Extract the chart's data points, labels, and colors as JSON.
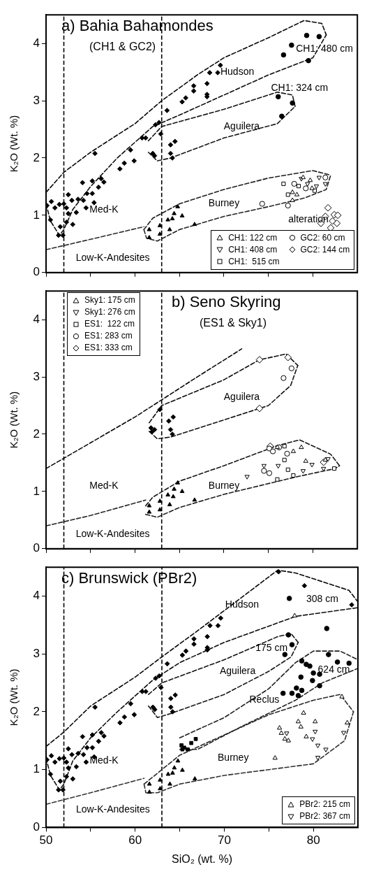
{
  "chart_data": [
    {
      "type": "scatter",
      "title": "a) Bahia Bahamondes",
      "subtitle": "(CH1 & GC2)",
      "ylabel": "K₂O (Wt. %)",
      "xlim": [
        50,
        85
      ],
      "ylim": [
        0,
        4.5
      ],
      "xticks": [
        50,
        {
          "value": 55,
          "label": null
        },
        60,
        {
          "value": 65,
          "label": null
        },
        70,
        {
          "value": 75,
          "label": null
        },
        80
      ],
      "yticks": [
        0,
        1,
        2,
        3,
        4
      ],
      "tick_labels": "y",
      "legend": "bottom right",
      "annotations": [
        "Hudson",
        "Aguilera",
        "Med-K",
        "Burney",
        "Low-K-Andesites",
        "CH1: 480 cm",
        "CH1: 324 cm",
        "alteration"
      ],
      "ref_lines": [
        {
          "axis": "x",
          "value": 52,
          "color": "#000000",
          "line_style": "dashed"
        },
        {
          "axis": "x",
          "value": 63,
          "color": "#000000",
          "line_style": "dashed"
        }
      ],
      "series": [
        {
          "type": "line",
          "color": "#060606",
          "line_style": "dashed",
          "x": [
            50,
            52,
            55,
            60,
            63,
            67,
            70,
            75,
            79,
            81,
            81.5
          ],
          "values": [
            1.4,
            1.75,
            2.1,
            2.6,
            3.0,
            3.45,
            3.75,
            4.1,
            4.4,
            4.35,
            4.15
          ]
        },
        {
          "type": "line",
          "color": "#0c0c0c",
          "line_style": "dashed",
          "x": [
            50,
            50.5,
            51.5,
            52,
            53,
            55,
            58,
            62,
            65,
            70,
            75,
            80,
            81.5
          ],
          "values": [
            1.2,
            0.9,
            0.65,
            0.75,
            1.1,
            1.5,
            2.0,
            2.55,
            2.75,
            3.1,
            3.45,
            3.75,
            4.15
          ]
        },
        {
          "type": "line",
          "color": "#121212",
          "line_style": "dashed",
          "x": [
            61.5,
            63,
            70,
            76,
            77.7,
            78
          ],
          "values": [
            2.3,
            2.55,
            2.85,
            3.15,
            3.1,
            2.9
          ]
        },
        {
          "type": "line",
          "color": "#181818",
          "line_style": "dashed",
          "x": [
            61.5,
            62.5,
            64,
            70,
            76,
            78
          ],
          "values": [
            2.1,
            1.95,
            2.0,
            2.35,
            2.6,
            2.9
          ]
        },
        {
          "type": "line",
          "color": "#1e1e1e",
          "line_style": "dashed",
          "x": [
            61,
            62,
            65,
            70,
            75,
            80,
            82
          ],
          "values": [
            0.75,
            0.95,
            1.2,
            1.45,
            1.65,
            1.78,
            1.7
          ]
        },
        {
          "type": "line",
          "color": "#242424",
          "line_style": "dashed",
          "x": [
            61,
            61.3,
            62.5,
            65,
            70,
            75,
            79,
            81.5,
            82
          ],
          "values": [
            0.75,
            0.6,
            0.55,
            0.75,
            0.98,
            1.15,
            1.3,
            1.45,
            1.7
          ]
        },
        {
          "type": "line",
          "color": "#2a2a2a",
          "line_style": "dashed",
          "x": [
            50,
            55,
            61
          ],
          "values": [
            0.4,
            0.58,
            0.8
          ]
        },
        {
          "color": "#000000",
          "marker": "diamond",
          "x": [
            50.1,
            50.6,
            50.5,
            51.0,
            51.5,
            51.6,
            52.0,
            52.3,
            52.5,
            52.3,
            52.5,
            52.9,
            53.4,
            53.0,
            53.6,
            54.1,
            54.2,
            54.5,
            54.6,
            55.2,
            55.2,
            55.4,
            55.5,
            55.9,
            56.2,
            56.5,
            51.4,
            51.9,
            58.3,
            58.8,
            59.5,
            59.9,
            60.8,
            61.2,
            62.0,
            62.2,
            62.3,
            62.7,
            62.9,
            63.6,
            64.0,
            64.2,
            64.5,
            64.0,
            65.3,
            65.7,
            66.6,
            66.6,
            68.1,
            68.1,
            68.1,
            68.4,
            69.3,
            69.6
          ],
          "values": [
            1.17,
            1.24,
            0.92,
            1.13,
            1.19,
            0.8,
            1.2,
            1.13,
            1.36,
            0.88,
            1.03,
            1.26,
            1.05,
            0.84,
            1.28,
            1.57,
            1.26,
            1.13,
            1.38,
            1.6,
            1.38,
            1.22,
            2.08,
            1.49,
            1.64,
            1.58,
            0.65,
            0.65,
            1.81,
            1.91,
            2.14,
            1.95,
            2.35,
            2.35,
            2.08,
            2.04,
            2.58,
            2.62,
            2.42,
            2.83,
            2.08,
            2.0,
            2.29,
            2.23,
            2.98,
            3.05,
            3.26,
            3.17,
            3.3,
            3.11,
            3.07,
            3.49,
            3.49,
            3.62
          ]
        },
        {
          "color": "#000000",
          "marker": "triangle",
          "x": [
            61.6,
            61.6,
            62.8,
            62.8,
            63.9,
            63.7,
            64.2,
            64.4,
            64.8,
            65.3,
            66.7
          ],
          "values": [
            0.61,
            0.75,
            0.67,
            0.82,
            0.75,
            0.92,
            0.94,
            1.03,
            1.15,
            0.99,
            0.84
          ]
        },
        {
          "color": "#000000",
          "marker": "circle",
          "x": [
            79.3,
            80.7,
            77.6,
            79.5,
            76.7,
            76.1,
            77.7,
            76.5
          ],
          "values": [
            4.14,
            4.12,
            3.97,
            3.7,
            3.8,
            3.07,
            2.96,
            2.73
          ]
        },
        {
          "name": "CH1: 122 cm",
          "color": "#000000",
          "marker": "triangle",
          "x": [
            77.7,
            78.2,
            78.9,
            79.7,
            77.7,
            79.9
          ],
          "values": [
            1.4,
            1.36,
            1.66,
            1.61,
            1.26,
            1.47
          ]
        },
        {
          "name": "CH1: 408 cm",
          "color": "#000000",
          "marker": "triangle-down",
          "x": [
            78.7,
            80.7,
            81.4,
            79.4,
            80.4
          ],
          "values": [
            1.64,
            1.66,
            1.55,
            1.55,
            1.51
          ]
        },
        {
          "name": "CH1:  515 cm",
          "color": "#000000",
          "marker": "square",
          "x": [
            76.7,
            77.2,
            78.4,
            80.2
          ],
          "values": [
            1.55,
            1.36,
            1.51,
            1.43
          ]
        },
        {
          "name": "GC2: 60 cm",
          "color": "#000000",
          "marker": "circle",
          "x": [
            77.2,
            79.2,
            74.3,
            77.9,
            81.4
          ],
          "values": [
            1.17,
            1.47,
            1.2,
            1.55,
            1.66
          ]
        },
        {
          "name": "GC2: 144 cm",
          "color": "#000000",
          "marker": "diamond",
          "x": [
            81.7,
            82.4,
            81.4,
            82.2,
            82.7,
            82.0,
            80.9,
            82.8
          ],
          "values": [
            1.13,
            1.01,
            0.98,
            0.9,
            0.86,
            0.78,
            0.86,
            1.0
          ]
        }
      ]
    },
    {
      "type": "scatter",
      "title": "b) Seno Skyring",
      "subtitle": "(ES1 & Sky1)",
      "ylabel": "K₂O (Wt. %)",
      "xlim": [
        50,
        85
      ],
      "ylim": [
        0,
        4.5
      ],
      "xticks": [
        50,
        {
          "value": 55,
          "label": null
        },
        60,
        {
          "value": 65,
          "label": null
        },
        70,
        {
          "value": 75,
          "label": null
        },
        80
      ],
      "yticks": [
        0,
        1,
        2,
        3,
        4
      ],
      "tick_labels": "y",
      "legend": "top left",
      "annotations": [
        "Aguilera",
        "Med-K",
        "Burney",
        "Low-K-Andesites"
      ],
      "ref_lines": [
        {
          "axis": "x",
          "value": 52,
          "color": "#000000",
          "line_style": "dashed"
        },
        {
          "axis": "x",
          "value": 63,
          "color": "#000000",
          "line_style": "dashed"
        }
      ],
      "series": [
        {
          "type": "line",
          "color": "#060606",
          "line_style": "dashed",
          "x": [
            50,
            55,
            60,
            63,
            67,
            72
          ],
          "values": [
            1.4,
            1.85,
            2.3,
            2.6,
            3.0,
            3.49
          ]
        },
        {
          "type": "line",
          "color": "#0c0c0c",
          "line_style": "dashed",
          "x": [
            61.6,
            63,
            70,
            74,
            77,
            78.3
          ],
          "values": [
            2.2,
            2.5,
            2.95,
            3.3,
            3.4,
            3.2
          ]
        },
        {
          "type": "line",
          "color": "#121212",
          "line_style": "dashed",
          "x": [
            61.6,
            62.5,
            64,
            70,
            75,
            77.5,
            78.3
          ],
          "values": [
            2.05,
            1.92,
            1.95,
            2.25,
            2.5,
            2.85,
            3.2
          ]
        },
        {
          "type": "line",
          "color": "#181818",
          "line_style": "dashed",
          "x": [
            61.2,
            62,
            65,
            70,
            76,
            78.5,
            82,
            83
          ],
          "values": [
            0.75,
            0.9,
            1.18,
            1.45,
            1.8,
            1.9,
            1.65,
            1.45
          ]
        },
        {
          "type": "line",
          "color": "#1e1e1e",
          "line_style": "dashed",
          "x": [
            61.2,
            62.5,
            65,
            70,
            78,
            82.5,
            83
          ],
          "values": [
            0.6,
            0.55,
            0.72,
            0.95,
            1.25,
            1.4,
            1.45
          ]
        },
        {
          "type": "line",
          "color": "#242424",
          "line_style": "dashed",
          "x": [
            50,
            55,
            61.2
          ],
          "values": [
            0.4,
            0.58,
            0.85
          ]
        },
        {
          "color": "#000000",
          "marker": "diamond",
          "x": [
            61.8,
            61.9,
            62.2,
            62.8,
            63.8,
            64.3,
            64.0,
            64.2
          ],
          "values": [
            2.11,
            2.04,
            2.08,
            2.43,
            2.23,
            2.3,
            2.08,
            2.0
          ]
        },
        {
          "color": "#000000",
          "marker": "triangle",
          "x": [
            61.6,
            61.6,
            62.8,
            62.8,
            63.9,
            63.7,
            64.3,
            64.4,
            64.8,
            65.3,
            66.7
          ],
          "values": [
            0.64,
            0.75,
            0.68,
            0.83,
            0.77,
            0.94,
            0.91,
            1.04,
            1.15,
            1.0,
            0.85
          ]
        },
        {
          "name": "Sky1: 175 cm",
          "color": "#000000",
          "marker": "triangle",
          "x": [
            77.8,
            78.7,
            79.2,
            81.4,
            76.0
          ],
          "values": [
            1.7,
            1.77,
            1.53,
            1.55,
            1.77
          ]
        },
        {
          "name": "Sky1: 276 cm",
          "color": "#000000",
          "marker": "triangle-down",
          "x": [
            72.6,
            74.5,
            76.1,
            78.9,
            79.9,
            81.2,
            81.7
          ],
          "values": [
            1.26,
            1.45,
            1.45,
            1.36,
            1.47,
            1.4,
            1.57
          ]
        },
        {
          "name": "ES1:  122 cm",
          "color": "#000000",
          "marker": "square",
          "x": [
            76.8,
            76.8,
            77.2,
            77.8,
            76.0,
            82.4
          ],
          "values": [
            1.79,
            1.55,
            1.38,
            1.28,
            1.21,
            1.4
          ]
        },
        {
          "name": "ES1: 283 cm",
          "color": "#000000",
          "marker": "circle",
          "x": [
            75.1,
            75.5,
            76.2,
            74.5,
            75.1,
            77.1,
            77.6,
            76.7
          ],
          "values": [
            1.75,
            1.7,
            1.77,
            1.36,
            1.32,
            1.66,
            3.15,
            2.98
          ]
        },
        {
          "name": "ES1: 333 cm",
          "color": "#000000",
          "marker": "diamond",
          "x": [
            75.2,
            81.2,
            74.0,
            74.0,
            77.2
          ],
          "values": [
            1.79,
            1.51,
            3.3,
            2.45,
            3.34
          ]
        }
      ]
    },
    {
      "type": "scatter",
      "title": "c) Brunswick (PBr2)",
      "xlabel": "SiO₂ (wt. %)",
      "ylabel": "K₂O (Wt. %)",
      "xlim": [
        50,
        85
      ],
      "ylim": [
        0,
        4.5
      ],
      "xticks": [
        50,
        {
          "value": 55,
          "label": null
        },
        60,
        {
          "value": 65,
          "label": null
        },
        70,
        {
          "value": 75,
          "label": null
        },
        80
      ],
      "yticks": [
        0,
        1,
        2,
        3,
        4
      ],
      "legend": "bottom right",
      "annotations": [
        "Hudson",
        "Aguilera",
        "Reclus",
        "Med-K",
        "Burney",
        "Low-K-Andesites",
        "308 cm",
        "175 cm",
        "624 cm"
      ],
      "ref_lines": [
        {
          "axis": "x",
          "value": 52,
          "color": "#000000",
          "line_style": "dashed"
        },
        {
          "axis": "x",
          "value": 63,
          "color": "#000000",
          "line_style": "dashed"
        }
      ],
      "series": [
        {
          "type": "line",
          "color": "#060606",
          "line_style": "dashed",
          "x": [
            50,
            52,
            55,
            60,
            63,
            67,
            70,
            73,
            76,
            78,
            84,
            85
          ],
          "values": [
            1.4,
            1.65,
            2.1,
            2.6,
            2.95,
            3.4,
            3.75,
            4.1,
            4.45,
            4.4,
            4.1,
            3.9
          ]
        },
        {
          "type": "line",
          "color": "#0c0c0c",
          "line_style": "dashed",
          "x": [
            50,
            50.5,
            51.5,
            52,
            53,
            55,
            58,
            62,
            65,
            70,
            78,
            85
          ],
          "values": [
            1.2,
            0.9,
            0.65,
            0.75,
            1.15,
            1.55,
            2.0,
            2.55,
            2.85,
            3.2,
            3.65,
            3.8
          ]
        },
        {
          "type": "line",
          "color": "#121212",
          "line_style": "dashed",
          "x": [
            61.5,
            63,
            70,
            76,
            77.5,
            78.3
          ],
          "values": [
            2.3,
            2.5,
            2.9,
            3.3,
            3.35,
            3.2
          ]
        },
        {
          "type": "line",
          "color": "#181818",
          "line_style": "dashed",
          "x": [
            61.5,
            62.5,
            64,
            70,
            75,
            77.5,
            78.3
          ],
          "values": [
            2.1,
            1.9,
            1.97,
            2.3,
            2.7,
            2.95,
            3.2
          ]
        },
        {
          "type": "line",
          "color": "#1e1e1e",
          "line_style": "dashed",
          "x": [
            65,
            70,
            75,
            78,
            80,
            83,
            85
          ],
          "values": [
            1.55,
            1.9,
            2.4,
            2.85,
            3.05,
            3.05,
            2.9
          ]
        },
        {
          "type": "line",
          "color": "#242424",
          "line_style": "dashed",
          "x": [
            65,
            67,
            72,
            78,
            81,
            85
          ],
          "values": [
            1.35,
            1.35,
            1.75,
            2.2,
            2.5,
            2.75
          ]
        },
        {
          "type": "line",
          "color": "#2a2a2a",
          "line_style": "dashed",
          "x": [
            61,
            63,
            65,
            70,
            75,
            80,
            83,
            84.5
          ],
          "values": [
            0.75,
            1.0,
            1.25,
            1.6,
            1.95,
            2.2,
            2.3,
            2.0
          ]
        },
        {
          "type": "line",
          "color": "#303030",
          "line_style": "dashed",
          "x": [
            61,
            61.2,
            62.5,
            65,
            70,
            75,
            80,
            83.5,
            84.5
          ],
          "values": [
            0.75,
            0.6,
            0.6,
            0.75,
            0.9,
            1.0,
            1.1,
            1.5,
            2.0
          ]
        },
        {
          "type": "line",
          "color": "#363636",
          "line_style": "dashed",
          "x": [
            50,
            55,
            61
          ],
          "values": [
            0.4,
            0.6,
            0.85
          ]
        },
        {
          "color": "#000000",
          "marker": "diamond",
          "x": [
            50.1,
            50.6,
            50.5,
            51.0,
            51.5,
            51.6,
            52.0,
            52.3,
            52.5,
            52.3,
            52.5,
            52.9,
            53.4,
            53.0,
            53.6,
            54.1,
            54.2,
            54.5,
            54.6,
            55.2,
            55.2,
            55.4,
            55.5,
            55.9,
            56.2,
            56.5,
            51.4,
            51.9,
            58.3,
            58.8,
            59.5,
            59.9,
            60.8,
            61.2,
            62.0,
            62.2,
            62.3,
            62.7,
            62.9,
            63.6,
            64.0,
            64.2,
            64.5,
            64.0,
            65.3,
            65.7,
            66.6,
            66.6,
            68.1,
            68.1,
            68.1,
            68.4,
            69.3,
            69.6
          ],
          "values": [
            1.17,
            1.24,
            0.92,
            1.13,
            1.19,
            0.8,
            1.2,
            1.13,
            1.36,
            0.88,
            1.03,
            1.26,
            1.05,
            0.84,
            1.28,
            1.57,
            1.26,
            1.13,
            1.38,
            1.6,
            1.38,
            1.22,
            2.08,
            1.49,
            1.64,
            1.58,
            0.65,
            0.65,
            1.81,
            1.91,
            2.14,
            1.95,
            2.35,
            2.35,
            2.08,
            2.04,
            2.58,
            2.62,
            2.42,
            2.83,
            2.08,
            2.0,
            2.29,
            2.23,
            2.98,
            3.05,
            3.26,
            3.17,
            3.3,
            3.11,
            3.07,
            3.49,
            3.49,
            3.62
          ]
        },
        {
          "color": "#000000",
          "marker": "triangle",
          "x": [
            61.6,
            61.6,
            62.8,
            62.8,
            63.9,
            63.7,
            64.2,
            64.4,
            64.8,
            65.3,
            66.7
          ],
          "values": [
            0.61,
            0.75,
            0.67,
            0.82,
            0.75,
            0.92,
            0.94,
            1.03,
            1.15,
            0.99,
            0.84
          ]
        },
        {
          "color": "#000000",
          "marker": "square",
          "x": [
            65.2,
            65.5,
            65.9,
            66.3,
            66.8,
            65.3
          ],
          "values": [
            1.42,
            1.38,
            1.35,
            1.46,
            1.53,
            1.35
          ]
        },
        {
          "color": "#000000",
          "marker": "circle",
          "x": [
            81.5,
            78.7,
            79.2,
            79.6,
            80.0,
            80.7,
            82.7,
            84.0,
            81.7,
            78.6,
            79.9,
            80.7,
            76.6,
            77.6,
            78.1,
            78.7,
            78.3,
            77.2,
            77.6,
            76.8,
            77.3
          ],
          "values": [
            3.44,
            2.88,
            2.82,
            2.79,
            2.67,
            2.65,
            2.86,
            2.84,
            2.99,
            2.6,
            2.54,
            2.45,
            2.32,
            2.32,
            2.41,
            2.37,
            2.28,
            3.33,
            3.16,
            2.99,
            3.96
          ]
        },
        {
          "color": "#000000",
          "marker": "diamond",
          "x": [
            76.1,
            79.0,
            84.3
          ],
          "values": [
            4.42,
            4.18,
            3.85
          ]
        },
        {
          "name": "PBr2: 215 cm",
          "color": "#000000",
          "marker": "triangle",
          "x": [
            76.2,
            76.4,
            76.8,
            77.2,
            78.3,
            78.6,
            78.9,
            79.2,
            80.2,
            83.2,
            83.8,
            75.7,
            77.9
          ],
          "values": [
            1.72,
            1.63,
            1.53,
            1.5,
            1.83,
            1.74,
            1.98,
            1.57,
            1.83,
            2.26,
            1.81,
            1.2,
            3.66
          ]
        },
        {
          "name": "PBr2: 367 cm",
          "color": "#000000",
          "marker": "triangle-down",
          "x": [
            77.0,
            80.2,
            79.9,
            80.5,
            81.4,
            80.5,
            83.4
          ],
          "values": [
            1.63,
            1.66,
            1.53,
            1.42,
            1.35,
            1.21,
            1.64
          ]
        }
      ]
    }
  ]
}
